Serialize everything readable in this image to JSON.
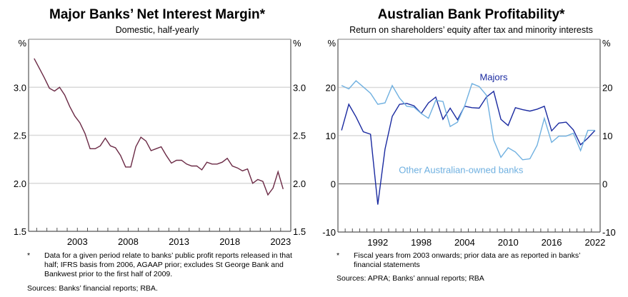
{
  "chart_data": [
    {
      "type": "line",
      "title": "Major Banks’ Net Interest Margin*",
      "subtitle": "Domestic, half-yearly",
      "ylabel_left": "%",
      "ylabel_right": "%",
      "xlabel": "",
      "ylim": [
        1.5,
        3.5
      ],
      "yticks": [
        "1.5",
        "2.0",
        "2.5",
        "3.0"
      ],
      "ytick_values": [
        1.5,
        2.0,
        2.5,
        3.0
      ],
      "xlim": [
        1998.2,
        2024.0
      ],
      "xtick_labels": [
        "2003",
        "2008",
        "2013",
        "2018",
        "2023"
      ],
      "xtick_values": [
        2003,
        2008,
        2013,
        2018,
        2023
      ],
      "grid": true,
      "series": [
        {
          "name": "Net interest margin",
          "color": "#6b2a45",
          "x": [
            1998.75,
            1999.25,
            1999.75,
            2000.25,
            2000.75,
            2001.25,
            2001.75,
            2002.25,
            2002.75,
            2003.25,
            2003.75,
            2004.25,
            2004.75,
            2005.25,
            2005.75,
            2006.25,
            2006.75,
            2007.25,
            2007.75,
            2008.25,
            2008.75,
            2009.25,
            2009.75,
            2010.25,
            2010.75,
            2011.25,
            2011.75,
            2012.25,
            2012.75,
            2013.25,
            2013.75,
            2014.25,
            2014.75,
            2015.25,
            2015.75,
            2016.25,
            2016.75,
            2017.25,
            2017.75,
            2018.25,
            2018.75,
            2019.25,
            2019.75,
            2020.25,
            2020.75,
            2021.25,
            2021.75,
            2022.25,
            2022.75,
            2023.25
          ],
          "values": [
            3.3,
            3.2,
            3.1,
            2.99,
            2.96,
            3.0,
            2.92,
            2.8,
            2.7,
            2.63,
            2.52,
            2.36,
            2.36,
            2.39,
            2.47,
            2.39,
            2.37,
            2.29,
            2.17,
            2.17,
            2.38,
            2.48,
            2.44,
            2.34,
            2.36,
            2.38,
            2.29,
            2.21,
            2.24,
            2.24,
            2.2,
            2.18,
            2.18,
            2.14,
            2.22,
            2.2,
            2.2,
            2.22,
            2.26,
            2.18,
            2.16,
            2.13,
            2.15,
            2.0,
            2.04,
            2.02,
            1.88,
            1.95,
            2.12,
            1.94
          ]
        }
      ],
      "footnote_marker": "*",
      "footnote": "Data for a given period relate to banks’ public profit reports released in that half; IFRS basis from 2006, AGAAP prior; excludes St George Bank and Bankwest prior to the first half of 2009.",
      "sources": "Sources: Banks’ financial reports; RBA."
    },
    {
      "type": "line",
      "title": "Australian Bank Profitability*",
      "subtitle": "Return on shareholders’ equity after tax and minority interests",
      "ylabel_left": "%",
      "ylabel_right": "%",
      "xlabel": "",
      "ylim": [
        -10,
        30
      ],
      "yticks": [
        "-10",
        "0",
        "10",
        "20"
      ],
      "ytick_values": [
        -10,
        0,
        10,
        20
      ],
      "xlim": [
        1986.5,
        2022.7
      ],
      "xtick_labels": [
        "1992",
        "1998",
        "2004",
        "2010",
        "2016",
        "2022"
      ],
      "xtick_values": [
        1992,
        1998,
        2004,
        2010,
        2016,
        2022
      ],
      "grid": true,
      "zero_line": true,
      "series": [
        {
          "name": "Majors",
          "color": "#1a2aa0",
          "x": [
            1987,
            1988,
            1989,
            1990,
            1991,
            1992,
            1993,
            1994,
            1995,
            1996,
            1997,
            1998,
            1999,
            2000,
            2001,
            2002,
            2003,
            2004,
            2005,
            2006,
            2007,
            2008,
            2009,
            2010,
            2011,
            2012,
            2013,
            2014,
            2015,
            2016,
            2017,
            2018,
            2019,
            2020,
            2021,
            2022
          ],
          "values": [
            11.1,
            16.5,
            13.9,
            10.8,
            10.3,
            -4.3,
            7.2,
            14.0,
            16.5,
            16.7,
            16.2,
            14.6,
            16.8,
            18.0,
            13.4,
            15.7,
            13.3,
            16.1,
            15.8,
            15.7,
            18.0,
            19.2,
            13.4,
            12.1,
            15.8,
            15.4,
            15.1,
            15.5,
            16.1,
            11.0,
            12.6,
            12.8,
            11.2,
            8.1,
            9.5,
            11.1
          ]
        },
        {
          "name": "Other Australian-owned banks",
          "color": "#6fb0e0",
          "x": [
            1987,
            1988,
            1989,
            1990,
            1991,
            1992,
            1993,
            1994,
            1995,
            1996,
            1997,
            1998,
            1999,
            2000,
            2001,
            2002,
            2003,
            2004,
            2005,
            2006,
            2007,
            2008,
            2009,
            2010,
            2011,
            2012,
            2013,
            2014,
            2015,
            2016,
            2017,
            2018,
            2019,
            2020,
            2021,
            2022
          ],
          "values": [
            20.4,
            19.7,
            21.4,
            20.1,
            18.8,
            16.5,
            16.8,
            20.4,
            17.8,
            16.1,
            15.9,
            14.6,
            13.6,
            17.3,
            17.1,
            11.9,
            12.8,
            16.2,
            20.8,
            20.2,
            18.4,
            9.1,
            5.5,
            7.5,
            6.6,
            5.0,
            5.2,
            8.0,
            13.6,
            8.6,
            9.9,
            9.9,
            10.5,
            6.9,
            11.1,
            11.1
          ]
        }
      ],
      "annotations": [
        {
          "text": "Majors",
          "series": "Majors"
        },
        {
          "text": "Other Australian-owned banks",
          "series": "Other Australian-owned banks"
        }
      ],
      "footnote_marker": "*",
      "footnote": "Fiscal years from 2003 onwards; prior data are as reported in banks’ financial statements",
      "sources": "Sources: APRA; Banks’ annual reports; RBA"
    }
  ]
}
